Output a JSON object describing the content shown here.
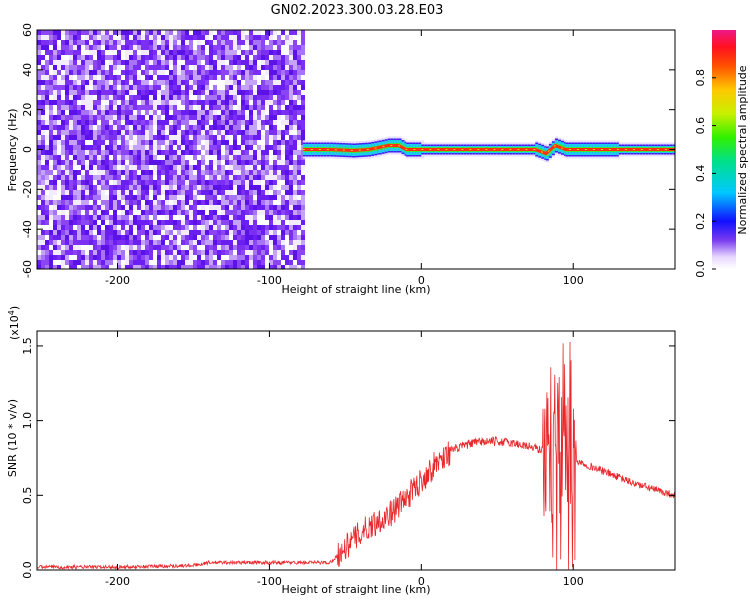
{
  "title": "GN02.2023.300.03.28.E03",
  "chart_data": [
    {
      "type": "heatmap",
      "xlabel": "Height of straight line (km)",
      "ylabel": "Frequency (Hz)",
      "xlim": [
        -253,
        167
      ],
      "ylim": [
        -60,
        60
      ],
      "x_ticks": [
        -200,
        -100,
        0,
        100
      ],
      "x_tick_labels": [
        "-200",
        "-100",
        "0",
        "100"
      ],
      "y_ticks": [
        -60,
        -40,
        -20,
        0,
        20,
        40,
        60
      ],
      "y_tick_labels": [
        "-60",
        "-40",
        "-20",
        "0",
        "20",
        "40",
        "60"
      ],
      "noise_region_x": [
        -253,
        -78
      ],
      "signal_track": {
        "x": [
          -78,
          -60,
          -45,
          -35,
          -28,
          -22,
          -15,
          -10,
          0,
          50,
          75,
          82,
          88,
          95,
          130,
          167
        ],
        "y": [
          0,
          0,
          -0.5,
          0,
          1,
          2,
          2,
          0,
          0,
          0,
          0,
          -2,
          2,
          0,
          0,
          0
        ]
      },
      "colorbar": {
        "label": "Normalized spectral amplitude",
        "range": [
          0,
          1
        ],
        "ticks": [
          0.0,
          0.2,
          0.4,
          0.6,
          0.8
        ],
        "tick_labels": [
          "0.0",
          "0.2",
          "0.4",
          "0.6",
          "0.8"
        ]
      }
    },
    {
      "type": "line",
      "xlabel": "Height of straight line (km)",
      "ylabel": "SNR (10 * v/v)",
      "scale_label": "(x10",
      "scale_exponent": "4",
      "xlim": [
        -253,
        167
      ],
      "ylim": [
        0,
        1.6
      ],
      "x_ticks": [
        -200,
        -100,
        0,
        100
      ],
      "x_tick_labels": [
        "-200",
        "-100",
        "0",
        "100"
      ],
      "y_ticks": [
        0.0,
        0.5,
        1.0,
        1.5
      ],
      "y_tick_labels": [
        "0.0",
        "0.5",
        "1.0",
        "1.5"
      ],
      "color": "#e8282b",
      "series": [
        {
          "x": [
            -253,
            -200,
            -150,
            -140,
            -120,
            -100,
            -80,
            -60,
            -55,
            -50,
            -45,
            -40,
            -30,
            -20,
            -10,
            0,
            10,
            20,
            30,
            40,
            50,
            60,
            70,
            80,
            85,
            90,
            95,
            100,
            105,
            110,
            120,
            130,
            140,
            150,
            160,
            167
          ],
          "y": [
            0.02,
            0.02,
            0.03,
            0.05,
            0.05,
            0.05,
            0.05,
            0.05,
            0.1,
            0.15,
            0.2,
            0.25,
            0.32,
            0.38,
            0.48,
            0.6,
            0.72,
            0.8,
            0.84,
            0.86,
            0.86,
            0.85,
            0.83,
            0.8,
            0.75,
            0.7,
            0.78,
            0.75,
            0.72,
            0.7,
            0.66,
            0.62,
            0.58,
            0.55,
            0.52,
            0.5
          ]
        }
      ]
    }
  ]
}
